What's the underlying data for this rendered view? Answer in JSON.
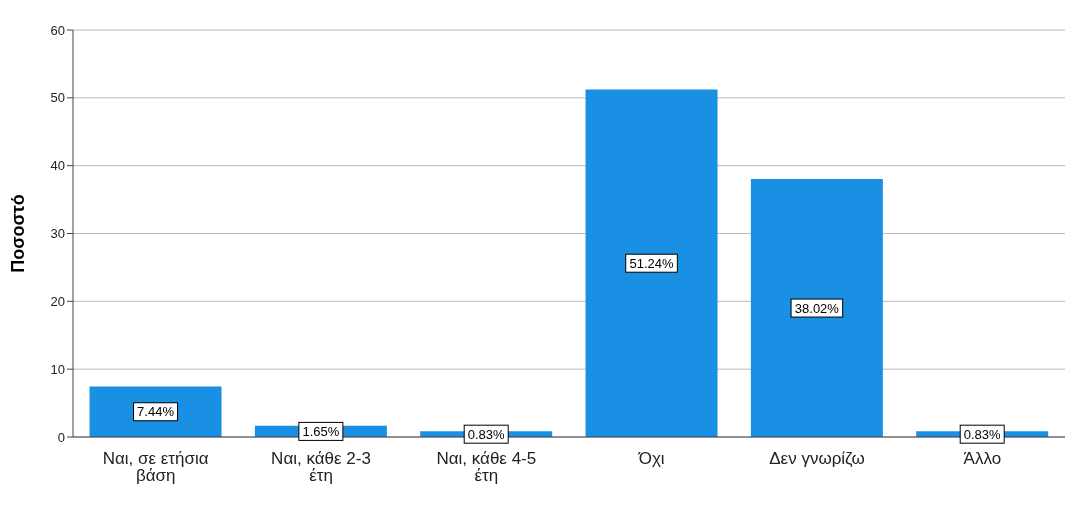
{
  "chart_data": {
    "type": "bar",
    "ylabel": "Ποσοστό",
    "categories": [
      "Ναι, σε ετήσια βάση",
      "Ναι, κάθε 2-3 έτη",
      "Ναι, κάθε 4-5 έτη",
      "Όχι",
      "Δεν γνωρίζω",
      "Άλλο"
    ],
    "values": [
      7.44,
      1.65,
      0.83,
      51.24,
      38.02,
      0.83
    ],
    "value_labels": [
      "7.44%",
      "1.65%",
      "0.83%",
      "51.24%",
      "38.02%",
      "0.83%"
    ],
    "color": "#1a90e4",
    "ylim": [
      0,
      60
    ],
    "yticks": [
      0,
      10,
      20,
      30,
      40,
      50,
      60
    ],
    "grid": "y"
  }
}
